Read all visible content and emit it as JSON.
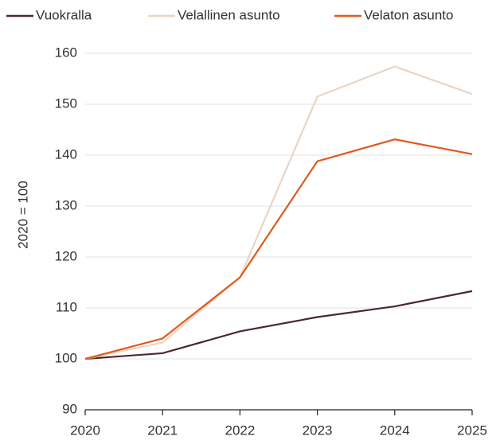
{
  "chart_data": {
    "type": "line",
    "ylabel": "2020 = 100",
    "categories": [
      "2020",
      "2021",
      "2022",
      "2023",
      "2024",
      "2025"
    ],
    "series": [
      {
        "name": "Vuokralla",
        "color": "#4a2a2a",
        "values": [
          100,
          101.1,
          105.4,
          108.2,
          110.3,
          113.3
        ]
      },
      {
        "name": "Velallinen asunto",
        "color": "#e8d5c5",
        "values": [
          100,
          103.2,
          116,
          151.5,
          157.4,
          152
        ]
      },
      {
        "name": "Velaton asunto",
        "color": "#e05a1c",
        "values": [
          100,
          104,
          116,
          138.8,
          143.1,
          140.2
        ]
      }
    ],
    "ylim": [
      90,
      160
    ],
    "yticks": [
      90,
      100,
      110,
      120,
      130,
      140,
      150,
      160
    ],
    "grid": true,
    "legend": "top"
  }
}
